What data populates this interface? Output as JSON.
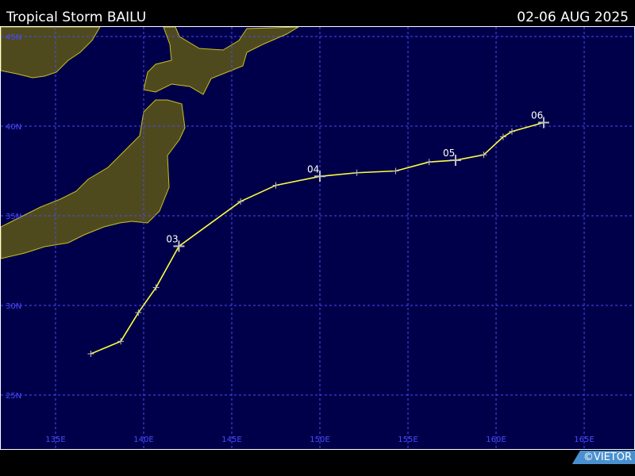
{
  "header": {
    "title": "Tropical Storm BAILU",
    "date_range": "02-06 AUG 2025"
  },
  "map": {
    "colors": {
      "ocean": "#00004a",
      "land": "#4f4a1e",
      "coast": "#c8c020",
      "grid": "#4a4aff",
      "track": "#ffff40",
      "marker": "#c0c0c0"
    },
    "lat_labels": [
      "45N",
      "40N",
      "35N",
      "30N",
      "25N"
    ],
    "lon_labels": [
      "135E",
      "140E",
      "145E",
      "150E",
      "155E",
      "160E",
      "165E"
    ],
    "latitudes": [
      45,
      40,
      35,
      30,
      25
    ],
    "longitudes": [
      135,
      140,
      145,
      150,
      155,
      160,
      165
    ],
    "track": [
      {
        "lon": 137.0,
        "lat": 27.3
      },
      {
        "lon": 138.7,
        "lat": 28.0
      },
      {
        "lon": 139.7,
        "lat": 29.6
      },
      {
        "lon": 140.7,
        "lat": 31.0
      },
      {
        "lon": 142.0,
        "lat": 33.3,
        "day": "03"
      },
      {
        "lon": 145.5,
        "lat": 35.8
      },
      {
        "lon": 147.5,
        "lat": 36.7
      },
      {
        "lon": 150.0,
        "lat": 37.2,
        "day": "04"
      },
      {
        "lon": 152.1,
        "lat": 37.4
      },
      {
        "lon": 154.3,
        "lat": 37.5
      },
      {
        "lon": 156.2,
        "lat": 38.0
      },
      {
        "lon": 157.7,
        "lat": 38.1,
        "day": "05"
      },
      {
        "lon": 159.3,
        "lat": 38.4
      },
      {
        "lon": 160.4,
        "lat": 39.4
      },
      {
        "lon": 160.9,
        "lat": 39.7
      },
      {
        "lon": 162.7,
        "lat": 40.2,
        "day": "06"
      }
    ]
  },
  "credit": "©VIETOR"
}
